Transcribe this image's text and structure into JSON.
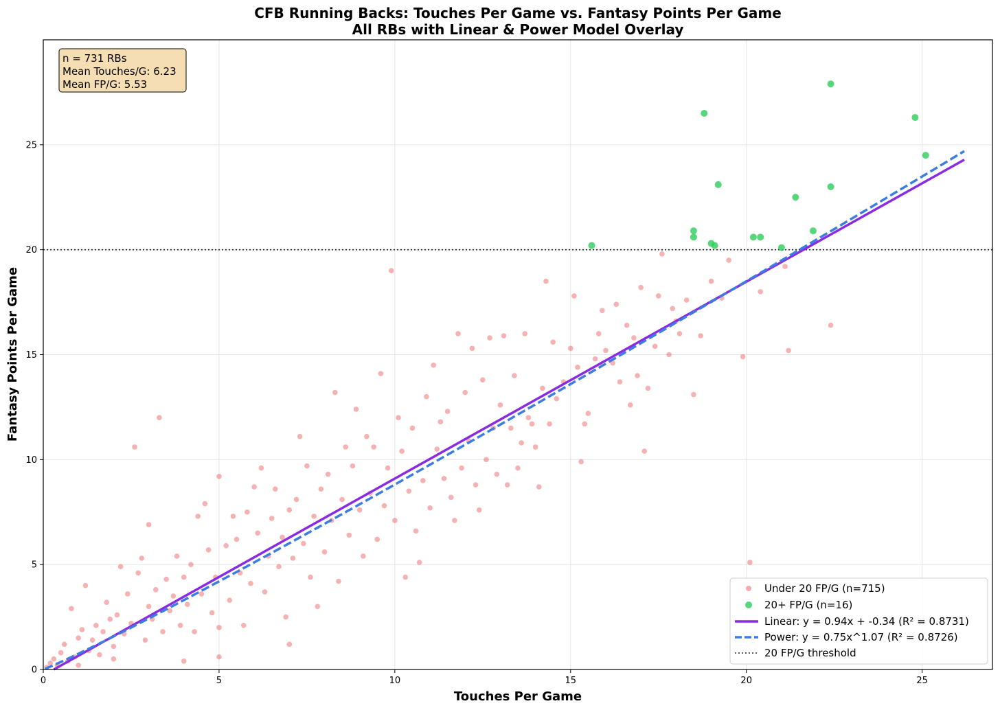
{
  "chart_data": {
    "type": "scatter",
    "title": "CFB Running Backs: Touches Per Game vs. Fantasy Points Per Game",
    "subtitle": "All RBs with Linear & Power Model Overlay",
    "xlabel": "Touches Per Game",
    "ylabel": "Fantasy Points Per Game",
    "xlim": [
      0,
      27
    ],
    "ylim": [
      0,
      30
    ],
    "xticks": [
      0,
      5,
      10,
      15,
      20,
      25
    ],
    "yticks": [
      0,
      5,
      10,
      15,
      20,
      25
    ],
    "grid": true,
    "legend_position": "bottom-right",
    "stats_box": {
      "line1": "n = 731 RBs",
      "line2": "Mean Touches/G: 6.23",
      "line3": "Mean FP/G: 5.53"
    },
    "threshold": {
      "y": 20,
      "label": "20 FP/G threshold"
    },
    "series": [
      {
        "name": "Under 20 FP/G (n=715)",
        "kind": "scatter",
        "color": "#e8474b",
        "points_note": "sample of the 715 points",
        "points": [
          [
            0.1,
            0.1
          ],
          [
            0.2,
            0.3
          ],
          [
            0.3,
            0.5
          ],
          [
            0.4,
            0.2
          ],
          [
            0.5,
            0.8
          ],
          [
            0.6,
            1.2
          ],
          [
            0.7,
            0.4
          ],
          [
            0.8,
            2.9
          ],
          [
            0.9,
            0.6
          ],
          [
            1.0,
            1.5
          ],
          [
            1.0,
            0.2
          ],
          [
            1.1,
            1.9
          ],
          [
            1.2,
            4.0
          ],
          [
            1.3,
            0.9
          ],
          [
            1.4,
            1.4
          ],
          [
            1.5,
            2.1
          ],
          [
            1.6,
            0.7
          ],
          [
            1.7,
            1.8
          ],
          [
            1.8,
            3.2
          ],
          [
            1.9,
            2.4
          ],
          [
            2.0,
            0.5
          ],
          [
            2.0,
            1.1
          ],
          [
            2.1,
            2.6
          ],
          [
            2.2,
            4.9
          ],
          [
            2.3,
            1.7
          ],
          [
            2.4,
            3.6
          ],
          [
            2.5,
            2.2
          ],
          [
            2.6,
            10.6
          ],
          [
            2.7,
            4.6
          ],
          [
            2.8,
            5.3
          ],
          [
            2.9,
            1.4
          ],
          [
            3.0,
            6.9
          ],
          [
            3.0,
            3.0
          ],
          [
            3.1,
            2.4
          ],
          [
            3.2,
            3.8
          ],
          [
            3.3,
            12.0
          ],
          [
            3.4,
            1.8
          ],
          [
            3.5,
            4.3
          ],
          [
            3.6,
            2.8
          ],
          [
            3.7,
            3.5
          ],
          [
            3.8,
            5.4
          ],
          [
            3.9,
            2.1
          ],
          [
            4.0,
            4.4
          ],
          [
            4.0,
            0.4
          ],
          [
            4.1,
            3.1
          ],
          [
            4.2,
            5.0
          ],
          [
            4.3,
            1.8
          ],
          [
            4.4,
            7.3
          ],
          [
            4.5,
            3.6
          ],
          [
            4.6,
            7.9
          ],
          [
            4.7,
            5.7
          ],
          [
            4.8,
            2.7
          ],
          [
            4.9,
            4.4
          ],
          [
            5.0,
            9.2
          ],
          [
            5.0,
            0.6
          ],
          [
            5.0,
            2.0
          ],
          [
            5.2,
            5.9
          ],
          [
            5.3,
            3.3
          ],
          [
            5.4,
            7.3
          ],
          [
            5.5,
            6.2
          ],
          [
            5.6,
            4.6
          ],
          [
            5.7,
            2.1
          ],
          [
            5.8,
            7.5
          ],
          [
            5.9,
            4.1
          ],
          [
            6.0,
            8.7
          ],
          [
            6.1,
            6.5
          ],
          [
            6.2,
            9.6
          ],
          [
            6.3,
            3.7
          ],
          [
            6.4,
            5.4
          ],
          [
            6.5,
            7.2
          ],
          [
            6.6,
            8.6
          ],
          [
            6.7,
            4.9
          ],
          [
            6.8,
            6.3
          ],
          [
            6.9,
            2.5
          ],
          [
            7.0,
            7.6
          ],
          [
            7.0,
            1.2
          ],
          [
            7.1,
            5.3
          ],
          [
            7.2,
            8.1
          ],
          [
            7.3,
            11.1
          ],
          [
            7.4,
            6.0
          ],
          [
            7.5,
            9.7
          ],
          [
            7.6,
            4.4
          ],
          [
            7.7,
            7.3
          ],
          [
            7.8,
            3.0
          ],
          [
            7.9,
            8.6
          ],
          [
            8.0,
            5.6
          ],
          [
            8.1,
            9.3
          ],
          [
            8.2,
            7.1
          ],
          [
            8.3,
            13.2
          ],
          [
            8.4,
            4.2
          ],
          [
            8.5,
            8.1
          ],
          [
            8.6,
            10.6
          ],
          [
            8.7,
            6.4
          ],
          [
            8.8,
            9.7
          ],
          [
            8.9,
            12.4
          ],
          [
            9.0,
            7.6
          ],
          [
            9.1,
            5.4
          ],
          [
            9.2,
            11.1
          ],
          [
            9.3,
            8.4
          ],
          [
            9.4,
            10.6
          ],
          [
            9.5,
            6.2
          ],
          [
            9.6,
            14.1
          ],
          [
            9.7,
            7.8
          ],
          [
            9.8,
            9.6
          ],
          [
            9.9,
            19.0
          ],
          [
            10.0,
            7.1
          ],
          [
            10.1,
            12.0
          ],
          [
            10.2,
            10.4
          ],
          [
            10.3,
            4.4
          ],
          [
            10.4,
            8.5
          ],
          [
            10.5,
            11.5
          ],
          [
            10.6,
            6.6
          ],
          [
            10.7,
            5.1
          ],
          [
            10.8,
            9.0
          ],
          [
            10.9,
            13.0
          ],
          [
            11.0,
            7.7
          ],
          [
            11.1,
            14.5
          ],
          [
            11.2,
            10.5
          ],
          [
            11.3,
            11.8
          ],
          [
            11.4,
            9.1
          ],
          [
            11.5,
            12.3
          ],
          [
            11.6,
            8.2
          ],
          [
            11.7,
            7.1
          ],
          [
            11.8,
            16.0
          ],
          [
            11.9,
            9.6
          ],
          [
            12.0,
            13.2
          ],
          [
            12.1,
            10.9
          ],
          [
            12.2,
            15.3
          ],
          [
            12.3,
            8.8
          ],
          [
            12.4,
            7.6
          ],
          [
            12.5,
            13.8
          ],
          [
            12.6,
            10.0
          ],
          [
            12.7,
            15.8
          ],
          [
            12.8,
            11.5
          ],
          [
            12.9,
            9.3
          ],
          [
            13.0,
            12.6
          ],
          [
            13.1,
            15.9
          ],
          [
            13.2,
            8.8
          ],
          [
            13.3,
            11.5
          ],
          [
            13.4,
            14.0
          ],
          [
            13.5,
            9.6
          ],
          [
            13.6,
            10.8
          ],
          [
            13.7,
            16.0
          ],
          [
            13.8,
            12.0
          ],
          [
            13.9,
            11.7
          ],
          [
            14.0,
            10.6
          ],
          [
            14.1,
            8.7
          ],
          [
            14.2,
            13.4
          ],
          [
            14.3,
            18.5
          ],
          [
            14.4,
            11.7
          ],
          [
            14.5,
            15.6
          ],
          [
            14.6,
            12.9
          ],
          [
            14.8,
            13.7
          ],
          [
            15.0,
            15.3
          ],
          [
            15.1,
            17.8
          ],
          [
            15.2,
            14.4
          ],
          [
            15.3,
            9.9
          ],
          [
            15.4,
            11.7
          ],
          [
            15.5,
            12.2
          ],
          [
            15.7,
            14.8
          ],
          [
            15.8,
            16.0
          ],
          [
            15.9,
            17.1
          ],
          [
            16.0,
            15.2
          ],
          [
            16.2,
            14.6
          ],
          [
            16.3,
            17.4
          ],
          [
            16.4,
            13.7
          ],
          [
            16.6,
            16.4
          ],
          [
            16.7,
            12.6
          ],
          [
            16.8,
            15.8
          ],
          [
            16.9,
            14.0
          ],
          [
            17.0,
            18.2
          ],
          [
            17.1,
            10.4
          ],
          [
            17.2,
            13.4
          ],
          [
            17.4,
            15.4
          ],
          [
            17.5,
            17.8
          ],
          [
            17.6,
            19.8
          ],
          [
            17.8,
            15.0
          ],
          [
            17.9,
            17.2
          ],
          [
            18.0,
            16.6
          ],
          [
            18.1,
            16.0
          ],
          [
            18.3,
            17.6
          ],
          [
            18.5,
            13.1
          ],
          [
            18.7,
            15.9
          ],
          [
            19.0,
            18.5
          ],
          [
            19.3,
            17.7
          ],
          [
            19.5,
            19.5
          ],
          [
            19.9,
            14.9
          ],
          [
            20.1,
            5.1
          ],
          [
            20.4,
            18.0
          ],
          [
            21.2,
            15.2
          ],
          [
            21.1,
            19.2
          ],
          [
            22.4,
            16.4
          ]
        ]
      },
      {
        "name": "20+ FP/G (n=16)",
        "kind": "scatter",
        "color": "#2ecc5a",
        "points": [
          [
            15.6,
            20.2
          ],
          [
            18.5,
            20.9
          ],
          [
            18.5,
            20.6
          ],
          [
            18.8,
            26.5
          ],
          [
            19.0,
            20.3
          ],
          [
            19.1,
            20.2
          ],
          [
            19.2,
            23.1
          ],
          [
            20.2,
            20.6
          ],
          [
            20.4,
            20.6
          ],
          [
            21.0,
            20.1
          ],
          [
            21.4,
            22.5
          ],
          [
            21.9,
            20.9
          ],
          [
            22.4,
            23.0
          ],
          [
            22.4,
            27.9
          ],
          [
            24.8,
            26.3
          ],
          [
            25.1,
            24.5
          ]
        ]
      },
      {
        "name": "Linear: y = 0.94x + -0.34 (R² = 0.8731)",
        "kind": "line",
        "color": "#8a2be2",
        "equation": {
          "slope": 0.94,
          "intercept": -0.34
        },
        "x_range": [
          0.3,
          26.2
        ]
      },
      {
        "name": "Power: y = 0.75x^1.07 (R² = 0.8726)",
        "kind": "dashed-line",
        "color": "#3b7de0",
        "equation": {
          "coef": 0.75,
          "exponent": 1.07
        },
        "x_range": [
          0.05,
          26.2
        ]
      }
    ]
  }
}
